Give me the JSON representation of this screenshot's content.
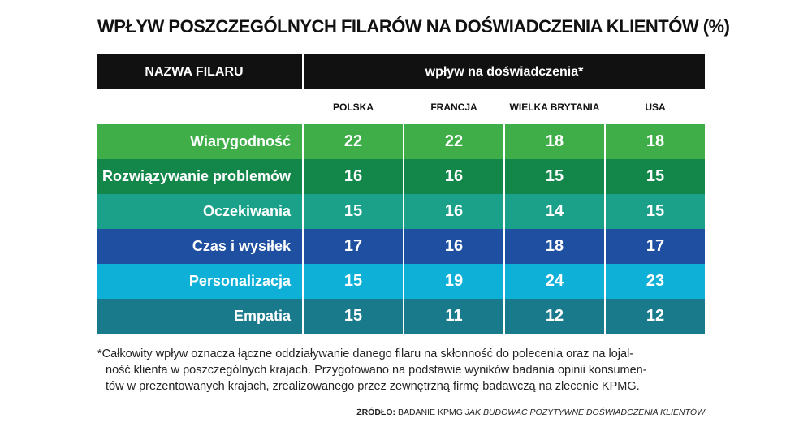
{
  "title": "WPŁYW POSZCZEGÓLNYCH FILARÓW NA DOŚWIADCZENIA KLIENTÓW (%)",
  "table": {
    "header": [
      "NAZWA FILARU",
      "wpływ na doświadczenia*"
    ],
    "columns": [
      "POLSKA",
      "FRANCJA",
      "WIELKA BRYTANIA",
      "USA"
    ],
    "rows": [
      {
        "label": "Wiarygodność",
        "values": [
          22,
          22,
          18,
          18
        ]
      },
      {
        "label": "Rozwiązywanie problemów",
        "values": [
          16,
          16,
          15,
          15
        ]
      },
      {
        "label": "Oczekiwania",
        "values": [
          15,
          16,
          14,
          15
        ]
      },
      {
        "label": "Czas i wysiłek",
        "values": [
          17,
          16,
          18,
          17
        ]
      },
      {
        "label": "Personalizacja",
        "values": [
          15,
          19,
          24,
          23
        ]
      },
      {
        "label": "Empatia",
        "values": [
          15,
          11,
          12,
          12
        ]
      }
    ]
  },
  "footnote": [
    "*Całkowity wpływ oznacza łączne oddziaływanie danego filaru na skłonność do polecenia oraz na lojal-",
    "ność klienta w poszczególnych krajach. Przygotowano na podstawie wyników badania opinii konsumen-",
    "tów w prezentowanych krajach, zrealizowanego przez zewnętrzną firmę badawczą na zlecenie KPMG."
  ],
  "source": {
    "label": "ŹRÓDŁO:",
    "text": "BADANIE KPMG",
    "title": "JAK BUDOWAĆ POZYTYWNE DOŚWIADCZENIA KLIENTÓW"
  }
}
